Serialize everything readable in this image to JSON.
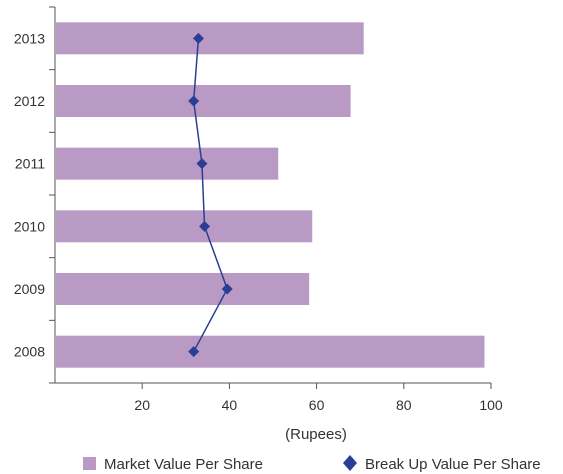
{
  "chart_data": {
    "type": "bar",
    "orientation": "horizontal",
    "categories": [
      "2008",
      "2009",
      "2010",
      "2011",
      "2012",
      "2013"
    ],
    "series": [
      {
        "name": "Market Value Per Share",
        "type": "bar",
        "values": [
          98.5,
          58.3,
          59.0,
          51.2,
          67.8,
          70.8
        ],
        "color": "#b89ac4"
      },
      {
        "name": "Break Up Value Per Share",
        "type": "line",
        "marker": "diamond",
        "values": [
          31.8,
          39.5,
          34.3,
          33.7,
          31.8,
          32.9
        ],
        "color": "#2a3f93"
      }
    ],
    "xticks": [
      "20",
      "40",
      "60",
      "80",
      "100"
    ],
    "xlim": [
      0,
      100
    ],
    "xlabel": "(Rupees)",
    "ylabel": "",
    "title": "",
    "grid": false,
    "legend": "bottom"
  }
}
